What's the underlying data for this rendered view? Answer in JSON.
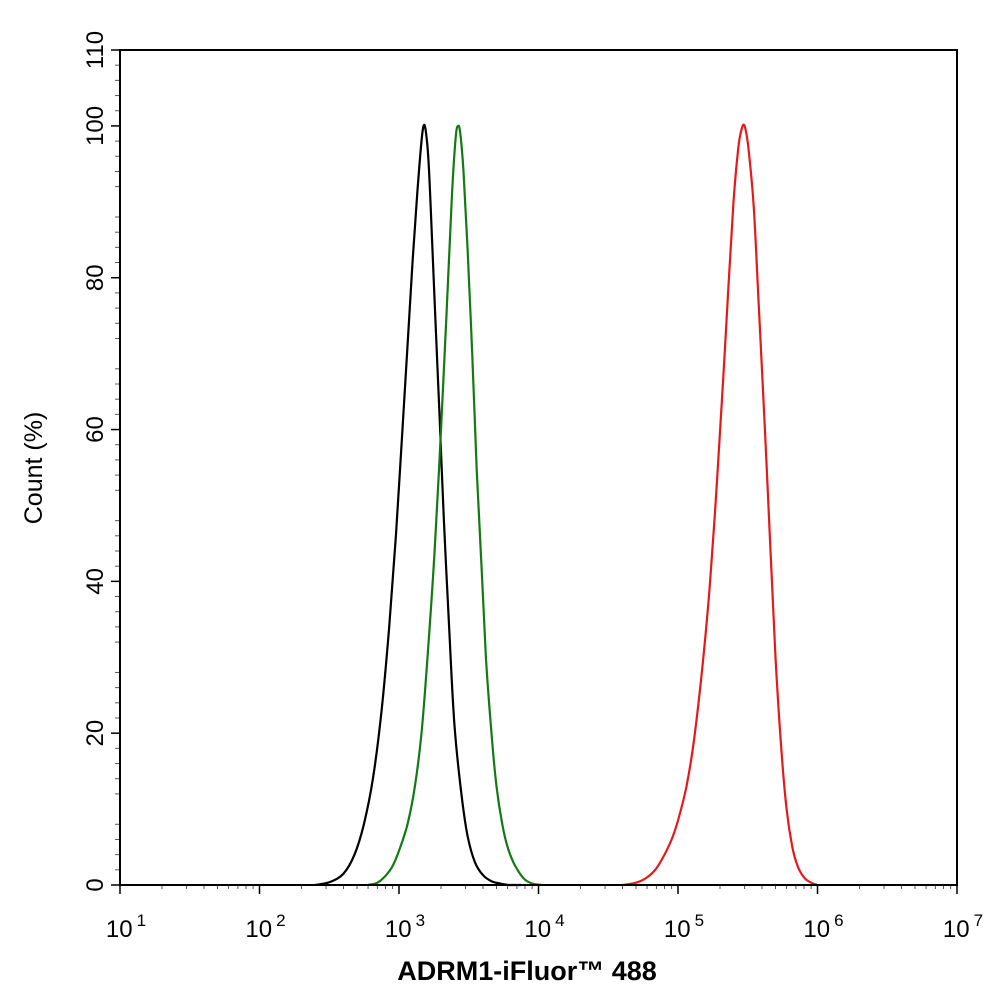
{
  "chart_data": {
    "type": "line",
    "title": "",
    "xlabel": "ADRM1-iFluor™ 488",
    "ylabel": "Count (%)",
    "x_scale": "log",
    "xlim": [
      10,
      10000000
    ],
    "ylim": [
      0,
      110
    ],
    "x_ticks": [
      {
        "base": "10",
        "exp": "1",
        "value": 10
      },
      {
        "base": "10",
        "exp": "2",
        "value": 100
      },
      {
        "base": "10",
        "exp": "3",
        "value": 1000
      },
      {
        "base": "10",
        "exp": "4",
        "value": 10000
      },
      {
        "base": "10",
        "exp": "5",
        "value": 100000
      },
      {
        "base": "10",
        "exp": "6",
        "value": 1000000
      },
      {
        "base": "10",
        "exp": "7",
        "value": 10000000
      }
    ],
    "y_ticks": [
      "0",
      "20",
      "40",
      "60",
      "80",
      "100",
      "110"
    ],
    "grid": false,
    "legend": "none",
    "series": [
      {
        "color": "#000000",
        "x": [
          250,
          320,
          400,
          480,
          560,
          650,
          750,
          850,
          950,
          1050,
          1150,
          1250,
          1350,
          1450,
          1500,
          1550,
          1620,
          1700,
          1800,
          1950,
          2100,
          2300,
          2500,
          2800,
          3100,
          3500,
          4000,
          4600,
          5300,
          6200,
          7500
        ],
        "y": [
          0,
          0.4,
          1.5,
          4,
          8,
          14,
          23,
          34,
          46,
          59,
          71,
          82,
          91,
          98,
          100,
          99.5,
          96,
          88,
          77,
          62,
          48,
          33,
          21,
          12,
          6.5,
          3,
          1.3,
          0.5,
          0.2,
          0,
          0
        ]
      },
      {
        "color": "#137A13",
        "x": [
          600,
          700,
          800,
          900,
          1000,
          1150,
          1300,
          1450,
          1600,
          1800,
          2000,
          2200,
          2400,
          2550,
          2650,
          2750,
          2900,
          3100,
          3350,
          3600,
          3900,
          4200,
          4600,
          5000,
          5500,
          6000,
          6600,
          7300,
          8000,
          9000,
          10500
        ],
        "y": [
          0,
          0.3,
          1.2,
          2.5,
          4.5,
          8,
          13,
          20,
          30,
          44,
          60,
          76,
          91,
          98.5,
          100,
          99,
          94,
          84,
          70,
          55,
          42,
          30,
          20,
          13,
          8,
          5,
          3,
          1.6,
          0.7,
          0.2,
          0
        ]
      },
      {
        "color": "#E31A1C",
        "x": [
          40000,
          50000,
          60000,
          70000,
          80000,
          90000,
          100000,
          115000,
          130000,
          150000,
          170000,
          190000,
          210000,
          230000,
          250000,
          270000,
          285000,
          300000,
          320000,
          350000,
          380000,
          420000,
          460000,
          500000,
          550000,
          600000,
          660000,
          720000,
          800000,
          900000,
          1000000
        ],
        "y": [
          0,
          0.3,
          1.0,
          2.2,
          4.0,
          6.0,
          8.5,
          13,
          19,
          29,
          40,
          53,
          66,
          79,
          90,
          97,
          99.5,
          100,
          97,
          89,
          76,
          60,
          44,
          30,
          18,
          10,
          5,
          2.5,
          1.0,
          0.3,
          0
        ]
      }
    ]
  }
}
